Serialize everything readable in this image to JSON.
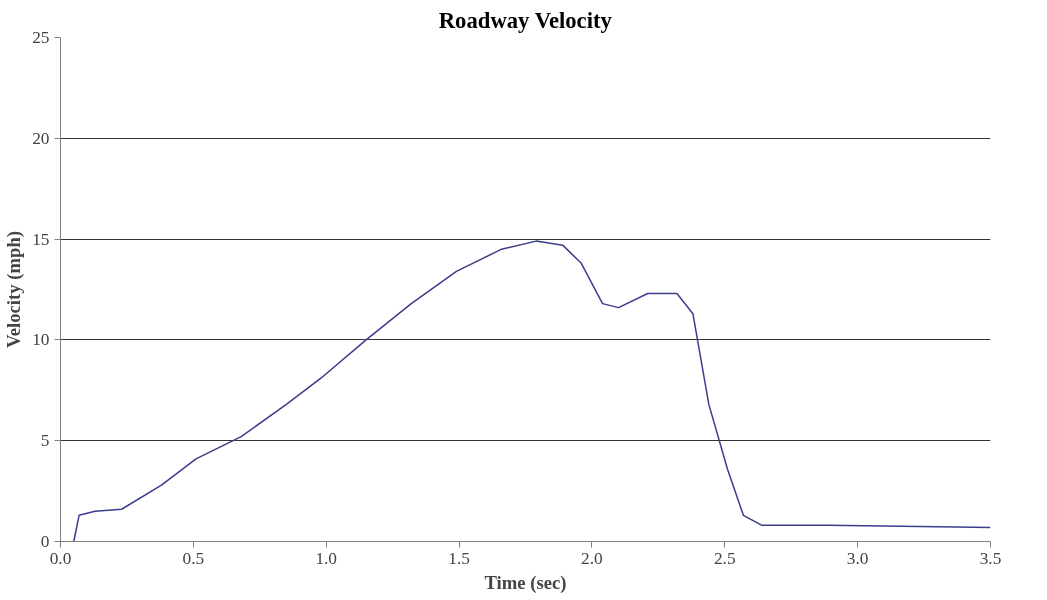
{
  "chart_data": {
    "type": "line",
    "title": "Roadway Velocity",
    "xlabel": "Time (sec)",
    "ylabel": "Velocity (mph)",
    "xlim": [
      0,
      3.5
    ],
    "ylim": [
      0,
      25
    ],
    "xticks": [
      {
        "value": 0,
        "label": "0.0"
      },
      {
        "value": 0.5,
        "label": "0.5"
      },
      {
        "value": 1,
        "label": "1.0"
      },
      {
        "value": 1.5,
        "label": "1.5"
      },
      {
        "value": 2,
        "label": "2.0"
      },
      {
        "value": 2.5,
        "label": "2.5"
      },
      {
        "value": 3,
        "label": "3.0"
      },
      {
        "value": 3.5,
        "label": "3.5"
      }
    ],
    "yticks": [
      0,
      5,
      10,
      15,
      20,
      25
    ],
    "grid": "y",
    "marker": "none",
    "line_style": "solid",
    "series": [
      {
        "color": "#3c3c8c",
        "x": [
          0.05,
          0.07,
          0.13,
          0.23,
          0.38,
          0.51,
          0.68,
          0.85,
          0.98,
          1.15,
          1.32,
          1.49,
          1.66,
          1.79,
          1.89,
          1.96,
          2.04,
          2.1,
          2.21,
          2.32,
          2.38,
          2.44,
          2.51,
          2.57,
          2.64,
          2.89,
          3.5
        ],
        "values": [
          0,
          1.3,
          1.5,
          1.6,
          2.8,
          4.1,
          5.2,
          6.8,
          8.1,
          10.0,
          11.8,
          13.4,
          14.5,
          14.9,
          14.7,
          13.8,
          11.8,
          11.6,
          12.3,
          12.3,
          11.3,
          6.8,
          3.6,
          1.3,
          0.8,
          0.8,
          0.7
        ]
      }
    ]
  }
}
